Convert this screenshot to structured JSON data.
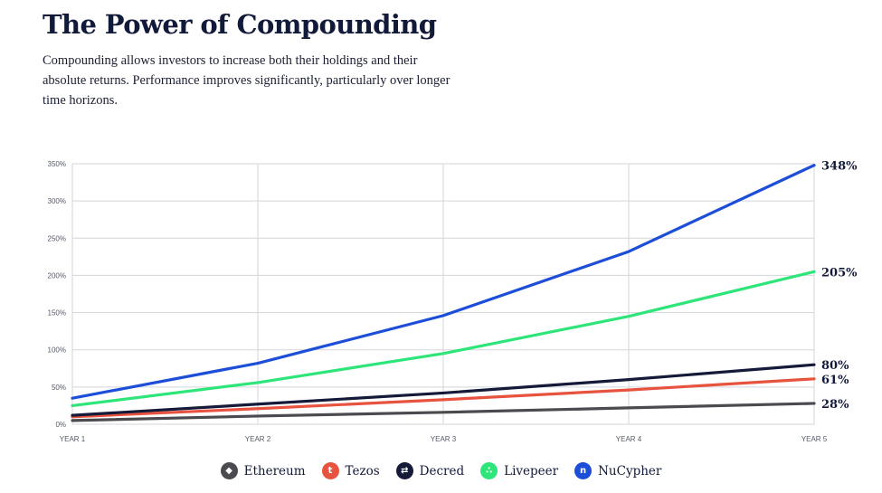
{
  "header": {
    "title": "The Power of Compounding",
    "subtitle": "Compounding allows investors to increase both their holdings and their absolute returns. Performance improves significantly, particularly over longer time horizons."
  },
  "chart_data": {
    "type": "line",
    "categories": [
      "YEAR 1",
      "YEAR 2",
      "YEAR 3",
      "YEAR 4",
      "YEAR 5"
    ],
    "y_ticks": [
      "0%",
      "50%",
      "100%",
      "150%",
      "200%",
      "250%",
      "300%",
      "350%"
    ],
    "ylim": [
      0,
      350
    ],
    "grid": true,
    "legend_position": "bottom",
    "series": [
      {
        "name": "Ethereum",
        "color": "#4a4a4f",
        "icon": "ethereum-icon",
        "values": [
          5,
          11,
          16,
          22,
          28
        ],
        "end_label": "28%"
      },
      {
        "name": "Tezos",
        "color": "#e8533f",
        "icon": "tezos-icon",
        "values": [
          10,
          21,
          33,
          46,
          61
        ],
        "end_label": "61%"
      },
      {
        "name": "Decred",
        "color": "#141a38",
        "icon": "decred-icon",
        "values": [
          12,
          27,
          42,
          60,
          80
        ],
        "end_label": "80%"
      },
      {
        "name": "Livepeer",
        "color": "#2ee579",
        "icon": "livepeer-icon",
        "values": [
          25,
          56,
          95,
          145,
          205
        ],
        "end_label": "205%"
      },
      {
        "name": "NuCypher",
        "color": "#1d4ed8",
        "icon": "nucypher-icon",
        "values": [
          35,
          82,
          146,
          232,
          348
        ],
        "end_label": "348%"
      }
    ]
  }
}
